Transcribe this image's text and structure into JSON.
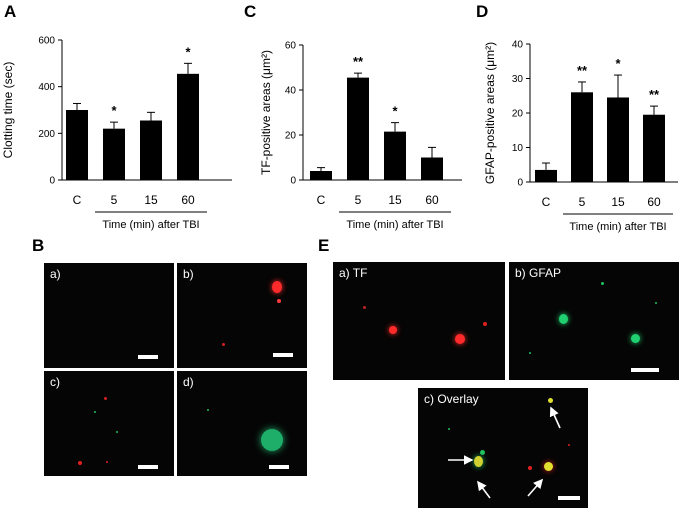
{
  "panel_letters": {
    "a": "A",
    "b": "B",
    "c": "C",
    "d": "D",
    "e": "E"
  },
  "chart_data": [
    {
      "panel": "A",
      "type": "bar",
      "categories": [
        "C",
        "5",
        "15",
        "60"
      ],
      "values": [
        300,
        220,
        255,
        455
      ],
      "errors": [
        28,
        28,
        35,
        45
      ],
      "significance": [
        "",
        "*",
        "",
        "*"
      ],
      "ylabel": "Clotting time (sec)",
      "xlabel": "Time (min) after TBI",
      "ylim": [
        0,
        600
      ],
      "yticks": [
        0,
        200,
        400,
        600
      ],
      "grid": false
    },
    {
      "panel": "C",
      "type": "bar",
      "categories": [
        "C",
        "5",
        "15",
        "60"
      ],
      "values": [
        4,
        45.5,
        21.5,
        10
      ],
      "errors": [
        1.5,
        2,
        4,
        4.5
      ],
      "significance": [
        "",
        "**",
        "*",
        ""
      ],
      "ylabel": "TF-positive areas (μm²)",
      "xlabel": "Time (min) after TBI",
      "ylim": [
        0,
        60
      ],
      "yticks": [
        0,
        20,
        40,
        60
      ],
      "grid": false
    },
    {
      "panel": "D",
      "type": "bar",
      "categories": [
        "C",
        "5",
        "15",
        "60"
      ],
      "values": [
        3.5,
        26,
        24.5,
        19.5
      ],
      "errors": [
        2,
        3,
        6.5,
        2.5
      ],
      "significance": [
        "",
        "**",
        "*",
        "**"
      ],
      "ylabel": "GFAP-positive areas (μm²)",
      "xlabel": "Time (min) after TBI",
      "ylim": [
        0,
        40
      ],
      "yticks": [
        0,
        10,
        20,
        30,
        40
      ],
      "grid": false
    }
  ],
  "micrographs_b": [
    {
      "label": "a)"
    },
    {
      "label": "b)"
    },
    {
      "label": "c)"
    },
    {
      "label": "d)"
    }
  ],
  "micrographs_e": [
    {
      "label": "a) TF"
    },
    {
      "label": "b) GFAP"
    },
    {
      "label": "c) Overlay"
    }
  ],
  "colors": {
    "bar": "#000000",
    "tf_signal": "#e02020",
    "gfap_signal": "#20c060",
    "overlay_signal": "#e0e030"
  }
}
